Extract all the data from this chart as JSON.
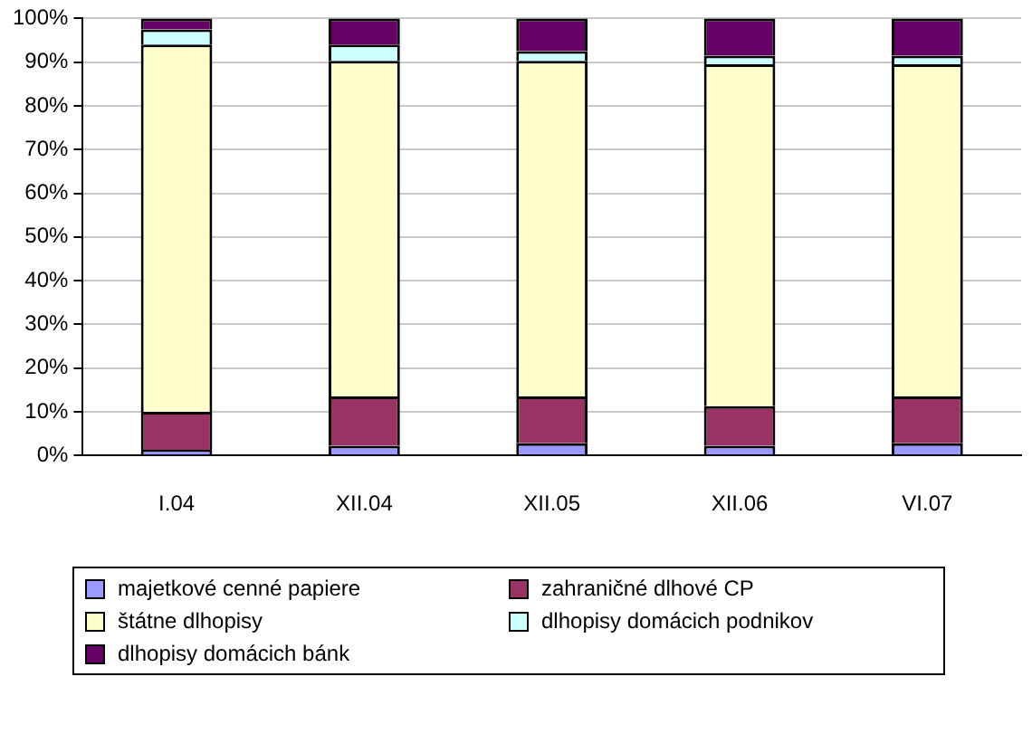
{
  "chart_data": {
    "type": "bar",
    "stacked": true,
    "categories": [
      "I.04",
      "XII.04",
      "XII.05",
      "XII.06",
      "VI.07"
    ],
    "series": [
      {
        "name": "majetkové cenné papiere",
        "color": "#9999ff",
        "values": [
          1.3,
          2.2,
          2.8,
          2.2,
          2.8
        ]
      },
      {
        "name": "zahraničné dlhové CP",
        "color": "#993366",
        "values": [
          8.7,
          11.3,
          10.7,
          9.1,
          10.7
        ]
      },
      {
        "name": "štátne dlhopisy",
        "color": "#ffffcc",
        "values": [
          84,
          76.8,
          76.8,
          78.2,
          76
        ]
      },
      {
        "name": "dlhopisy domácich podnikov",
        "color": "#ccffff",
        "values": [
          3.5,
          3.7,
          2.2,
          2,
          2
        ]
      },
      {
        "name": "dlhopisy domácich bánk",
        "color": "#660066",
        "values": [
          2.5,
          6,
          7.5,
          8.5,
          8.5
        ]
      }
    ],
    "ylim": [
      0,
      100
    ],
    "yticks": [
      {
        "value": 0,
        "label": "0%"
      },
      {
        "value": 10,
        "label": "10%"
      },
      {
        "value": 20,
        "label": "20%"
      },
      {
        "value": 30,
        "label": "30%"
      },
      {
        "value": 40,
        "label": "40%"
      },
      {
        "value": 50,
        "label": "50%"
      },
      {
        "value": 60,
        "label": "60%"
      },
      {
        "value": 70,
        "label": "70%"
      },
      {
        "value": 80,
        "label": "80%"
      },
      {
        "value": 90,
        "label": "90%"
      },
      {
        "value": 100,
        "label": "100%"
      }
    ],
    "grid": "y",
    "legend": "bottom"
  }
}
